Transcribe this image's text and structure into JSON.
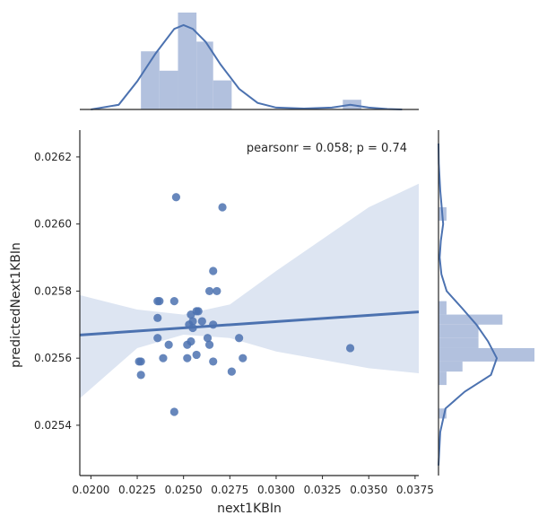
{
  "chart_data": {
    "type": "scatter",
    "xlabel": "next1KBIn",
    "ylabel": "predictedNext1KBIn",
    "annotation": "pearsonr = 0.058; p = 0.74",
    "xlim": [
      0.0194,
      0.0377
    ],
    "ylim": [
      0.02525,
      0.02628
    ],
    "xticks": [
      "0.0200",
      "0.0225",
      "0.0250",
      "0.0275",
      "0.0300",
      "0.0325",
      "0.0350",
      "0.0375"
    ],
    "yticks": [
      "0.0254",
      "0.0256",
      "0.0258",
      "0.0260",
      "0.0262"
    ],
    "grid": false,
    "colors": {
      "points": "#4c72b0",
      "regression": "#4c72b0",
      "ci_band": "#dde5f2",
      "histogram": "#b2c1de",
      "kde": "#4c72b0",
      "axes": "#262626"
    },
    "points": [
      {
        "x": 0.0246,
        "y": 0.02608
      },
      {
        "x": 0.0271,
        "y": 0.02605
      },
      {
        "x": 0.0266,
        "y": 0.02586
      },
      {
        "x": 0.0264,
        "y": 0.0258
      },
      {
        "x": 0.0268,
        "y": 0.0258
      },
      {
        "x": 0.0236,
        "y": 0.02577
      },
      {
        "x": 0.0237,
        "y": 0.02577
      },
      {
        "x": 0.0245,
        "y": 0.02577
      },
      {
        "x": 0.0254,
        "y": 0.02573
      },
      {
        "x": 0.0257,
        "y": 0.02574
      },
      {
        "x": 0.0258,
        "y": 0.02574
      },
      {
        "x": 0.0236,
        "y": 0.02572
      },
      {
        "x": 0.0255,
        "y": 0.02571
      },
      {
        "x": 0.026,
        "y": 0.02571
      },
      {
        "x": 0.0253,
        "y": 0.0257
      },
      {
        "x": 0.0266,
        "y": 0.0257
      },
      {
        "x": 0.0255,
        "y": 0.02569
      },
      {
        "x": 0.0236,
        "y": 0.02566
      },
      {
        "x": 0.0263,
        "y": 0.02566
      },
      {
        "x": 0.028,
        "y": 0.02566
      },
      {
        "x": 0.0242,
        "y": 0.02564
      },
      {
        "x": 0.0252,
        "y": 0.02564
      },
      {
        "x": 0.0264,
        "y": 0.02564
      },
      {
        "x": 0.0254,
        "y": 0.02565
      },
      {
        "x": 0.0257,
        "y": 0.02561
      },
      {
        "x": 0.0282,
        "y": 0.0256
      },
      {
        "x": 0.0239,
        "y": 0.0256
      },
      {
        "x": 0.0252,
        "y": 0.0256
      },
      {
        "x": 0.0266,
        "y": 0.02559
      },
      {
        "x": 0.0226,
        "y": 0.02559
      },
      {
        "x": 0.0227,
        "y": 0.02559
      },
      {
        "x": 0.0276,
        "y": 0.02556
      },
      {
        "x": 0.0227,
        "y": 0.02555
      },
      {
        "x": 0.0245,
        "y": 0.02544
      },
      {
        "x": 0.034,
        "y": 0.02563
      }
    ],
    "regression": {
      "x": [
        0.0194,
        0.0377
      ],
      "y": [
        0.025669,
        0.025738
      ]
    },
    "ci_band": {
      "x": [
        0.0194,
        0.0225,
        0.025,
        0.0275,
        0.03,
        0.0325,
        0.035,
        0.0377
      ],
      "upper": [
        0.025788,
        0.025745,
        0.02573,
        0.02576,
        0.02586,
        0.025955,
        0.02605,
        0.02612
      ],
      "lower": [
        0.02548,
        0.02563,
        0.02567,
        0.02566,
        0.02562,
        0.025595,
        0.02557,
        0.025555
      ]
    },
    "x_histogram": {
      "edges": [
        0.0227,
        0.0237,
        0.0247,
        0.0257,
        0.0266,
        0.0276,
        0.0286,
        0.0296,
        0.0306,
        0.0316,
        0.0326,
        0.0336,
        0.0346
      ],
      "counts": [
        6,
        4,
        10,
        7,
        3,
        0,
        0,
        0,
        0,
        0,
        0,
        1
      ]
    },
    "x_kde": {
      "x": [
        0.02,
        0.0215,
        0.0225,
        0.0235,
        0.0245,
        0.025,
        0.0255,
        0.0262,
        0.027,
        0.028,
        0.029,
        0.03,
        0.0315,
        0.033,
        0.034,
        0.035,
        0.036,
        0.0368
      ],
      "density": [
        0.0,
        0.05,
        0.3,
        0.6,
        0.86,
        0.9,
        0.86,
        0.72,
        0.48,
        0.22,
        0.07,
        0.02,
        0.01,
        0.02,
        0.05,
        0.02,
        0.005,
        0.0
      ]
    },
    "y_histogram": {
      "edges": [
        0.02542,
        0.02545,
        0.02549,
        0.02552,
        0.02556,
        0.02559,
        0.02563,
        0.02566,
        0.0257,
        0.02573,
        0.02577,
        0.0258,
        0.02584,
        0.02587,
        0.02591,
        0.02594,
        0.02598,
        0.02601,
        0.02605,
        0.02608
      ],
      "counts": [
        1,
        0,
        0,
        1,
        3,
        12,
        5,
        5,
        8,
        1,
        0,
        0,
        0,
        0,
        0,
        0,
        0,
        1,
        0
      ]
    },
    "y_kde": {
      "y": [
        0.02528,
        0.02538,
        0.02545,
        0.0255,
        0.02555,
        0.0256,
        0.02565,
        0.0257,
        0.02575,
        0.0258,
        0.02585,
        0.0259,
        0.02595,
        0.026,
        0.02604,
        0.0261,
        0.02618,
        0.02624
      ],
      "density": [
        0.0,
        0.03,
        0.12,
        0.45,
        0.9,
        1.0,
        0.85,
        0.65,
        0.4,
        0.14,
        0.05,
        0.02,
        0.04,
        0.08,
        0.06,
        0.03,
        0.005,
        0.0
      ]
    }
  }
}
